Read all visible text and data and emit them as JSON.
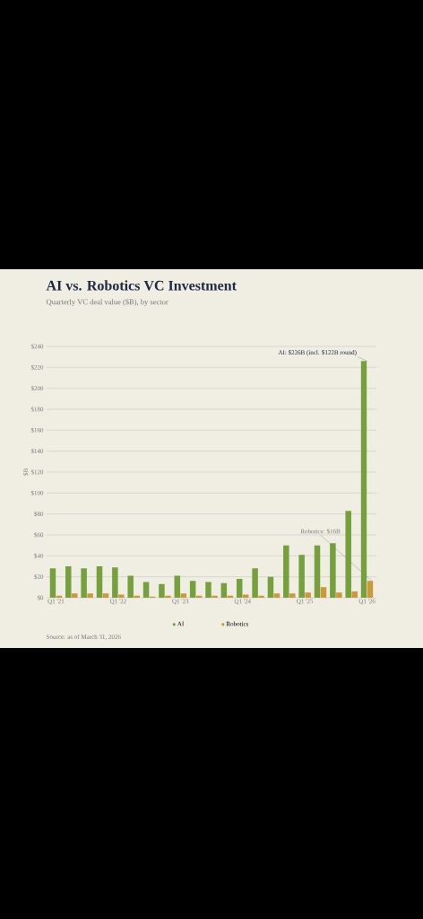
{
  "chart_data": {
    "type": "bar",
    "title": "AI vs. Robotics VC Investment",
    "subtitle": "Quarterly VC deal value ($B), by sector",
    "ylabel": "$B",
    "categories": [
      "Q1 '21",
      null,
      null,
      null,
      "Q1 '22",
      null,
      null,
      null,
      "Q1 '23",
      null,
      null,
      null,
      "Q1 '24",
      null,
      null,
      null,
      "Q1 '25",
      null,
      null,
      null,
      "Q1 '26"
    ],
    "series": [
      {
        "name": "AI",
        "color": "#76a03c",
        "values": [
          28,
          30,
          28,
          30,
          29,
          21,
          15,
          13,
          21,
          16,
          15,
          14,
          18,
          28,
          20,
          50,
          41,
          50,
          52,
          83,
          226
        ]
      },
      {
        "name": "Robotics",
        "color": "#c9993a",
        "values": [
          2,
          4,
          4,
          4,
          3,
          2,
          1,
          2,
          4,
          2,
          2,
          2,
          3,
          2,
          4,
          4,
          5,
          10,
          5,
          6,
          16
        ]
      }
    ],
    "ylim": [
      0,
      240
    ],
    "yticks": [
      {
        "value": 0,
        "label": "$0"
      },
      {
        "value": 20,
        "label": "$20"
      },
      {
        "value": 40,
        "label": "$40"
      },
      {
        "value": 60,
        "label": "$60"
      },
      {
        "value": 80,
        "label": "$80"
      },
      {
        "value": 100,
        "label": "$100"
      },
      {
        "value": 120,
        "label": "$120"
      },
      {
        "value": 140,
        "label": "$140"
      },
      {
        "value": 160,
        "label": "$160"
      },
      {
        "value": 180,
        "label": "$180"
      },
      {
        "value": 200,
        "label": "$200"
      },
      {
        "value": 220,
        "label": "$220"
      },
      {
        "value": 240,
        "label": "$240"
      }
    ],
    "grid": "y",
    "legend": "bottom",
    "annotations": [
      {
        "text": "AI: $226B  (incl. $122B round)",
        "x": "Q1 '26",
        "y": 226
      },
      {
        "text": "Robotics: $16B",
        "x": "Q1 '26",
        "y": 16
      },
      "Source: as of March 31, 2026"
    ]
  }
}
